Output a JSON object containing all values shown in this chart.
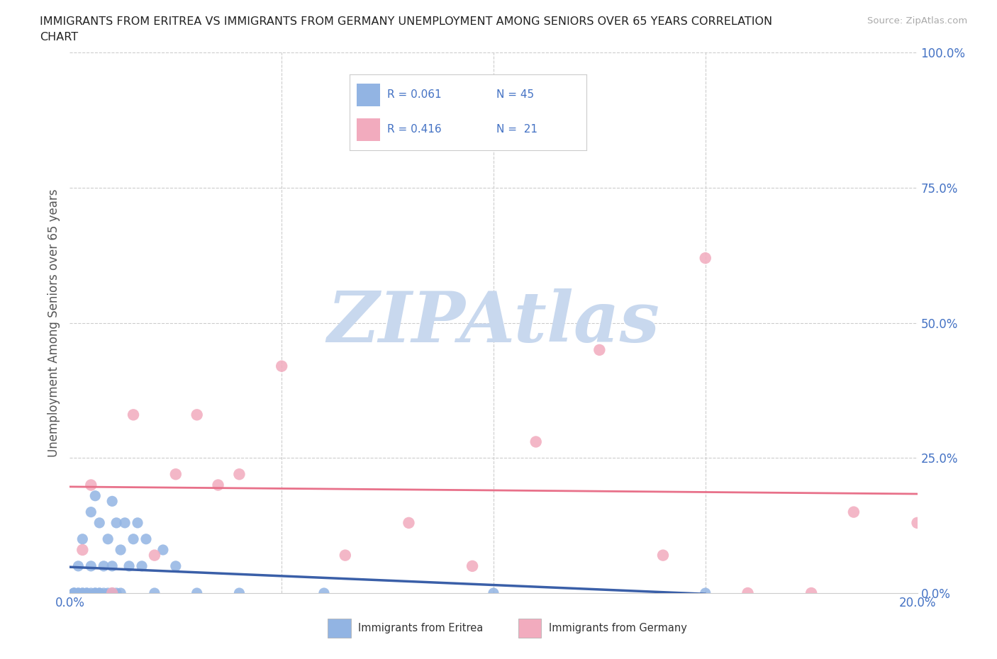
{
  "title_line1": "IMMIGRANTS FROM ERITREA VS IMMIGRANTS FROM GERMANY UNEMPLOYMENT AMONG SENIORS OVER 65 YEARS CORRELATION",
  "title_line2": "CHART",
  "source": "Source: ZipAtlas.com",
  "ylabel": "Unemployment Among Seniors over 65 years",
  "xlim": [
    0.0,
    0.2
  ],
  "ylim": [
    0.0,
    1.0
  ],
  "eritrea_color": "#92b4e3",
  "germany_color": "#f2abbe",
  "eritrea_line_color": "#3a5fa8",
  "germany_line_color": "#e8718a",
  "eritrea_R": 0.061,
  "eritrea_N": 45,
  "germany_R": 0.416,
  "germany_N": 21,
  "legend_text_color": "#4472c4",
  "watermark": "ZIPAtlas",
  "watermark_color": "#c8d8ee",
  "background_color": "#ffffff",
  "grid_color": "#cccccc",
  "tick_color": "#4472c4",
  "ylabel_color": "#555555",
  "eritrea_x": [
    0.001,
    0.001,
    0.001,
    0.002,
    0.002,
    0.002,
    0.003,
    0.003,
    0.003,
    0.004,
    0.004,
    0.005,
    0.005,
    0.005,
    0.006,
    0.006,
    0.006,
    0.007,
    0.007,
    0.007,
    0.008,
    0.008,
    0.009,
    0.009,
    0.01,
    0.01,
    0.01,
    0.011,
    0.011,
    0.012,
    0.012,
    0.013,
    0.014,
    0.015,
    0.016,
    0.017,
    0.018,
    0.02,
    0.022,
    0.025,
    0.03,
    0.04,
    0.06,
    0.1,
    0.15
  ],
  "eritrea_y": [
    0.0,
    0.0,
    0.0,
    0.0,
    0.0,
    0.05,
    0.0,
    0.0,
    0.1,
    0.0,
    0.0,
    0.15,
    0.05,
    0.0,
    0.18,
    0.0,
    0.0,
    0.13,
    0.0,
    0.0,
    0.05,
    0.0,
    0.1,
    0.0,
    0.17,
    0.05,
    0.0,
    0.13,
    0.0,
    0.08,
    0.0,
    0.13,
    0.05,
    0.1,
    0.13,
    0.05,
    0.1,
    0.0,
    0.08,
    0.05,
    0.0,
    0.0,
    0.0,
    0.0,
    0.0
  ],
  "germany_x": [
    0.003,
    0.005,
    0.01,
    0.015,
    0.02,
    0.025,
    0.03,
    0.035,
    0.04,
    0.05,
    0.065,
    0.08,
    0.095,
    0.11,
    0.125,
    0.14,
    0.15,
    0.16,
    0.175,
    0.185,
    0.2
  ],
  "germany_y": [
    0.08,
    0.2,
    0.0,
    0.33,
    0.07,
    0.22,
    0.33,
    0.2,
    0.22,
    0.42,
    0.07,
    0.13,
    0.05,
    0.28,
    0.45,
    0.07,
    0.62,
    0.0,
    0.0,
    0.15,
    0.13
  ]
}
